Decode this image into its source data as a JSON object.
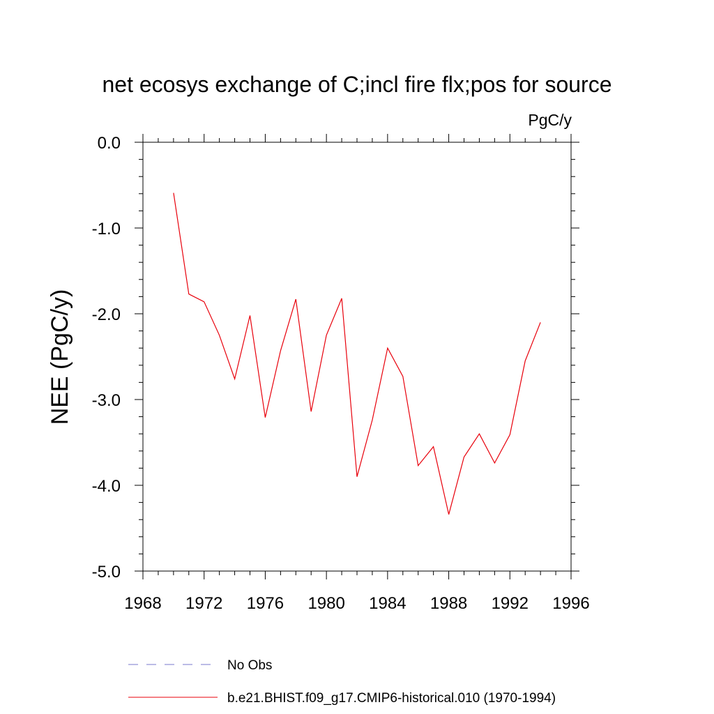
{
  "chart_data": {
    "type": "line",
    "title": "net ecosys exchange of C;incl fire flx;pos for source",
    "units_label": "PgC/y",
    "xlabel": "",
    "ylabel": "NEE  (PgC/y)",
    "xlim": [
      1968,
      1996
    ],
    "ylim": [
      -5.0,
      0.0
    ],
    "x_ticks": [
      1968,
      1972,
      1976,
      1980,
      1984,
      1988,
      1992,
      1996
    ],
    "y_ticks": [
      "0.0",
      "-1.0",
      "-2.0",
      "-3.0",
      "-4.0",
      "-5.0"
    ],
    "grid": false,
    "legend_position": "bottom",
    "legend": [
      {
        "name": "No Obs",
        "style": "dashed",
        "color": "#7777cc"
      },
      {
        "name": "b.e21.BHIST.f09_g17.CMIP6-historical.010 (1970-1994)",
        "style": "solid",
        "color": "#e8000b"
      }
    ],
    "series": [
      {
        "name": "b.e21.BHIST.f09_g17.CMIP6-historical.010 (1970-1994)",
        "color": "#e8000b",
        "x": [
          1970,
          1971,
          1972,
          1973,
          1974,
          1975,
          1976,
          1977,
          1978,
          1979,
          1980,
          1981,
          1982,
          1983,
          1984,
          1985,
          1986,
          1987,
          1988,
          1989,
          1990,
          1991,
          1992,
          1993,
          1994
        ],
        "y": [
          -0.59,
          -1.77,
          -1.86,
          -2.25,
          -2.76,
          -2.02,
          -3.21,
          -2.43,
          -1.83,
          -3.14,
          -2.25,
          -1.82,
          -3.9,
          -3.24,
          -2.4,
          -2.73,
          -3.77,
          -3.55,
          -4.34,
          -3.67,
          -3.4,
          -3.74,
          -3.41,
          -2.55,
          -2.1
        ]
      }
    ]
  }
}
